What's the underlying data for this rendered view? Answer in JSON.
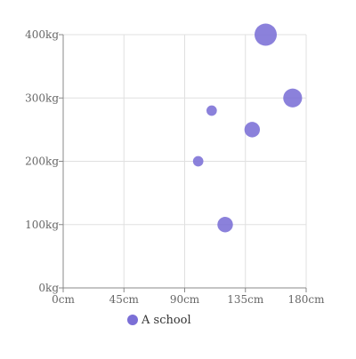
{
  "chart_data": {
    "type": "scatter",
    "title": "",
    "xlabel": "",
    "ylabel": "",
    "x_unit": "cm",
    "y_unit": "kg",
    "xlim": [
      0,
      180
    ],
    "ylim": [
      0,
      400
    ],
    "x_ticks": [
      "0cm",
      "45cm",
      "90cm",
      "135cm",
      "180cm"
    ],
    "x_tick_values": [
      0,
      45,
      90,
      135,
      180
    ],
    "y_ticks": [
      "0kg",
      "100kg",
      "200kg",
      "300kg",
      "400kg"
    ],
    "y_tick_values": [
      0,
      100,
      200,
      300,
      400
    ],
    "grid": true,
    "legend_position": "bottom",
    "color": "#7b6fd6",
    "series": [
      {
        "name": "A school",
        "points": [
          {
            "x": 150,
            "y": 400,
            "size": 5
          },
          {
            "x": 170,
            "y": 300,
            "size": 4
          },
          {
            "x": 110,
            "y": 280,
            "size": 1.5
          },
          {
            "x": 140,
            "y": 250,
            "size": 3
          },
          {
            "x": 100,
            "y": 200,
            "size": 1.5
          },
          {
            "x": 120,
            "y": 100,
            "size": 3
          }
        ]
      }
    ]
  }
}
